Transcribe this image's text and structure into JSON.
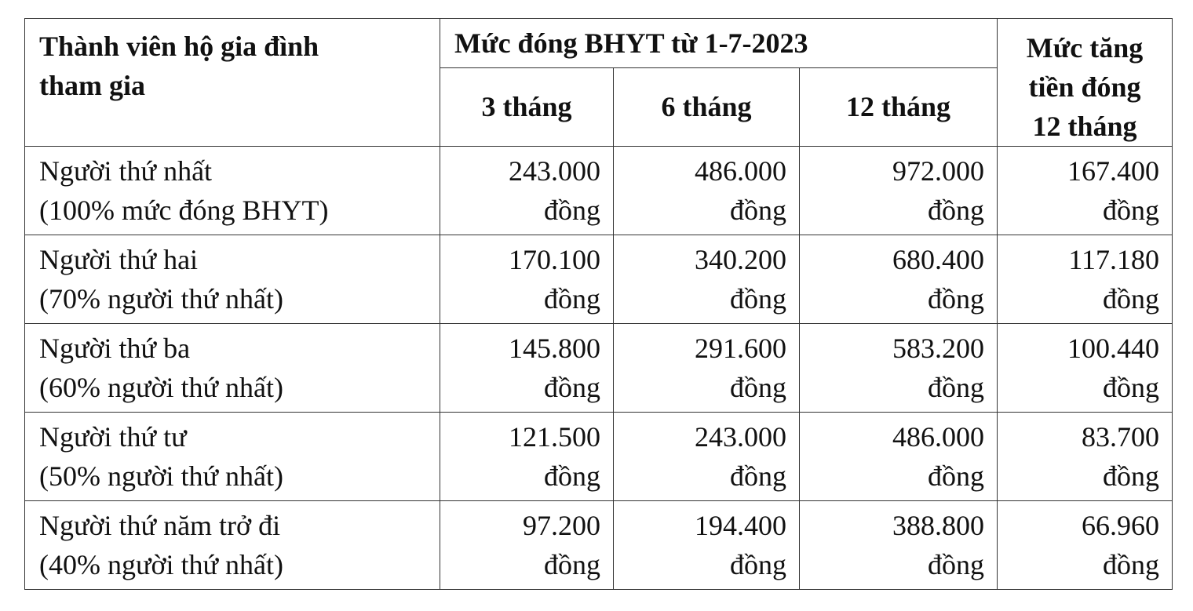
{
  "table": {
    "header": {
      "member": "Thành viên hộ gia đình\ntham gia",
      "group": "Mức đóng BHYT từ 1-7-2023",
      "periods": [
        "3 tháng",
        "6 tháng",
        "12 tháng"
      ],
      "increase": "Mức tăng\ntiền đóng\n12 tháng"
    },
    "rows": [
      [
        "Người thứ nhất\n(100% mức đóng BHYT)",
        "243.000\nđồng",
        "486.000\nđồng",
        "972.000\nđồng",
        "167.400\nđồng"
      ],
      [
        "Người thứ hai\n(70% người thứ nhất)",
        "170.100\nđồng",
        "340.200\nđồng",
        "680.400\nđồng",
        "117.180\nđồng"
      ],
      [
        "Người thứ ba\n(60% người thứ nhất)",
        "145.800\nđồng",
        "291.600\nđồng",
        "583.200\nđồng",
        "100.440\nđồng"
      ],
      [
        "Người thứ tư\n(50% người thứ nhất)",
        "121.500\nđồng",
        "243.000\nđồng",
        "486.000\nđồng",
        "83.700\nđồng"
      ],
      [
        "Người thứ năm trở đi\n(40% người thứ nhất)",
        "97.200\nđồng",
        "194.400\nđồng",
        "388.800\nđồng",
        "66.960\nđồng"
      ]
    ]
  }
}
